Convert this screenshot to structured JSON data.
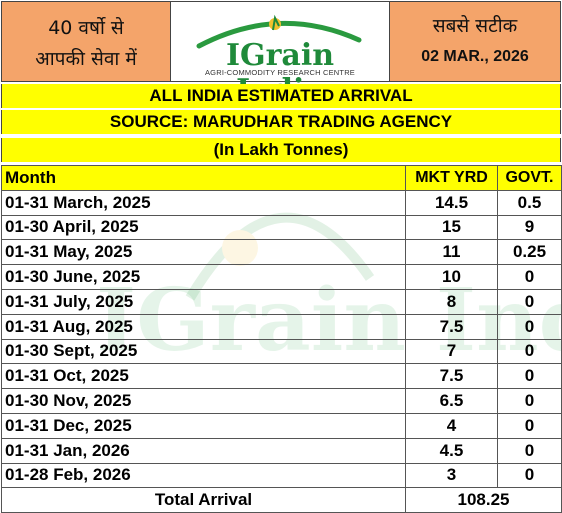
{
  "header": {
    "left_line1": "40 वर्षो से",
    "left_line2": "आपकी सेवा में",
    "logo_text": "IGrain India",
    "logo_subtitle": "AGRI-COMMODITY RESEARCH CENTRE",
    "right_line1": "सबसे सटीक",
    "date": "02 MAR., 2026"
  },
  "banner": {
    "title": "ALL INDIA ESTIMATED ARRIVAL",
    "source": "SOURCE: MARUDHAR TRADING AGENCY",
    "unit": "(In Lakh Tonnes)"
  },
  "table": {
    "columns": [
      "Month",
      "MKT YRD",
      "GOVT."
    ],
    "rows": [
      [
        "01-31 March, 2025",
        "14.5",
        "0.5"
      ],
      [
        "01-30 April, 2025",
        "15",
        "9"
      ],
      [
        "01-31 May, 2025",
        "11",
        "0.25"
      ],
      [
        "01-30 June, 2025",
        "10",
        "0"
      ],
      [
        "01-31 July, 2025",
        "8",
        "0"
      ],
      [
        "01-31 Aug, 2025",
        "7.5",
        "0"
      ],
      [
        "01-30 Sept, 2025",
        "7",
        "0"
      ],
      [
        "01-31 Oct, 2025",
        "7.5",
        "0"
      ],
      [
        "01-30 Nov, 2025",
        "6.5",
        "0"
      ],
      [
        "01-31 Dec, 2025",
        "4",
        "0"
      ],
      [
        "01-31 Jan, 2026",
        "4.5",
        "0"
      ],
      [
        "01-28 Feb, 2026",
        "3",
        "0"
      ]
    ],
    "total_label": "Total Arrival",
    "total_value": "108.25"
  },
  "watermark": {
    "text": "IGrain India"
  },
  "colors": {
    "orange": "#f4a46a",
    "yellow": "#ffff00",
    "green": "#1f8a3a"
  }
}
